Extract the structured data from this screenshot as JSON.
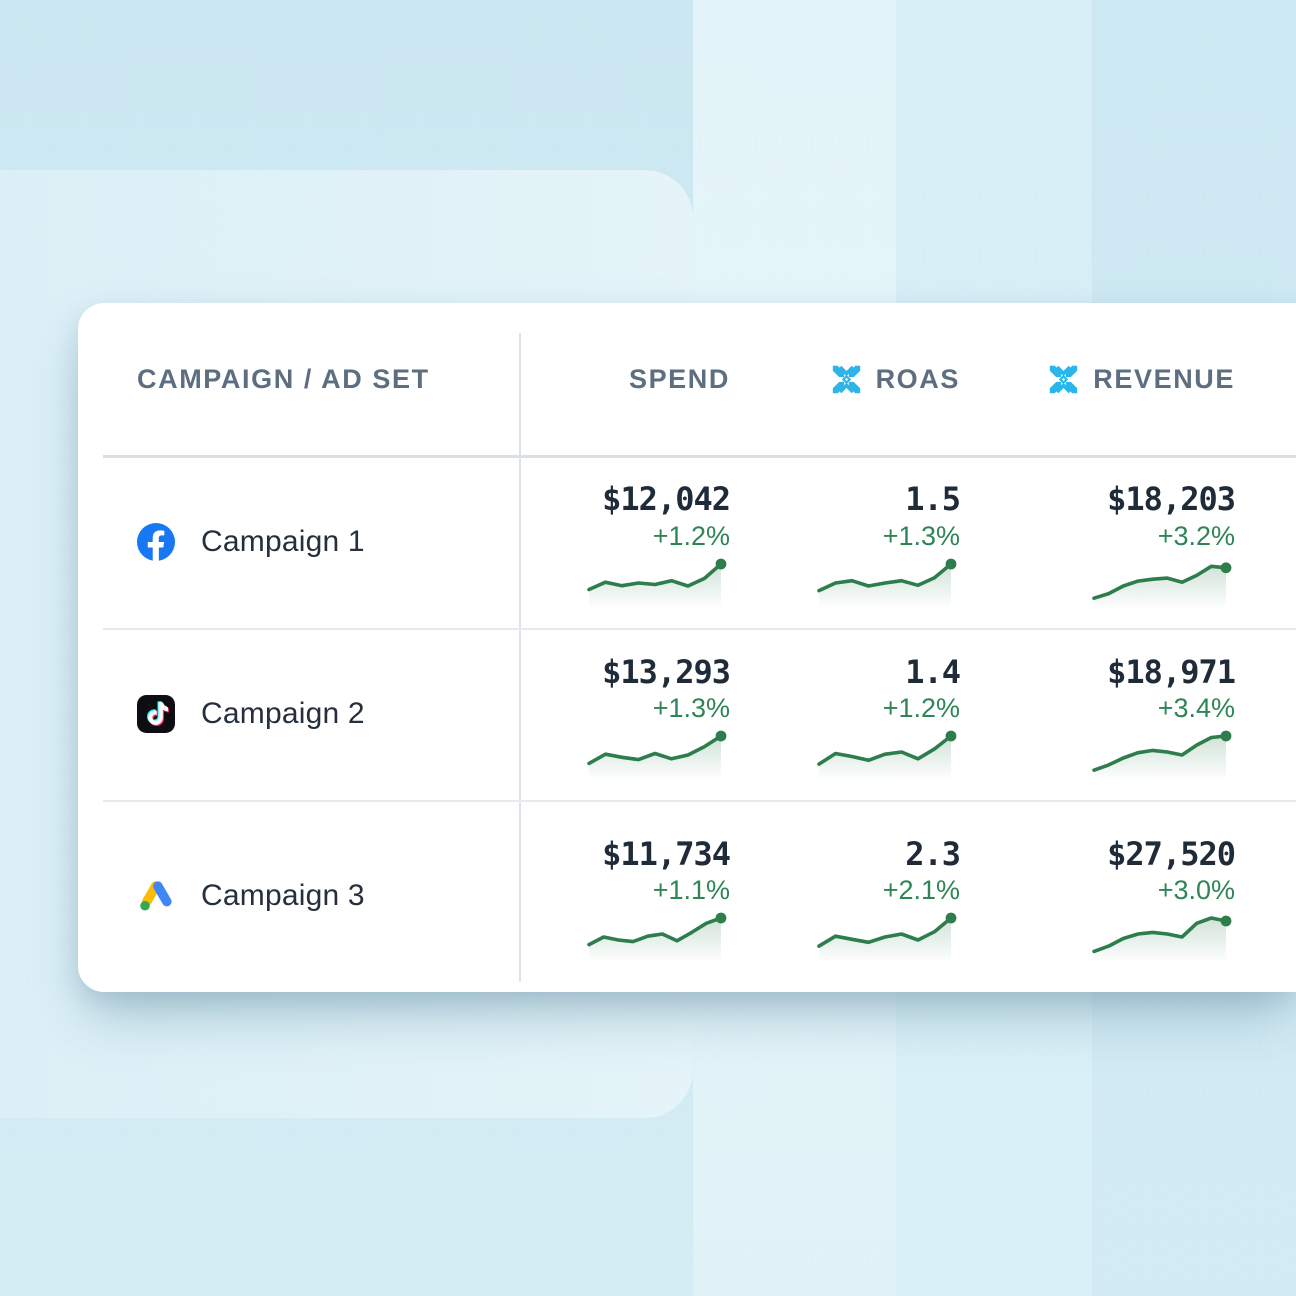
{
  "colors": {
    "accent_green": "#2f8556",
    "spark_green": "#2e7d4c",
    "snowflake_blue": "#2bb5e8",
    "facebook_blue": "#1877F2",
    "tiktok_black": "#0d0d12",
    "tiktok_cyan": "#25F4EE",
    "tiktok_red": "#FE2C55",
    "gads_yellow": "#FBBC04",
    "gads_blue": "#4285F4",
    "gads_green": "#34A853",
    "value_text": "#1f2b38",
    "header_text": "#5d6e80",
    "bg_cyan": "#d0eaf3"
  },
  "table": {
    "columns": [
      {
        "id": "campaign",
        "label": "CAMPAIGN / AD SET",
        "icon": null
      },
      {
        "id": "spend",
        "label": "SPEND",
        "icon": null
      },
      {
        "id": "roas",
        "label": "ROAS",
        "icon": "snowflake"
      },
      {
        "id": "revenue",
        "label": "REVENUE",
        "icon": "snowflake"
      }
    ],
    "rows": [
      {
        "name": "Campaign 1",
        "platform": "facebook",
        "spend": {
          "value": "$12,042",
          "delta": "+1.2%",
          "spark": [
            0.33,
            0.52,
            0.43,
            0.5,
            0.46,
            0.56,
            0.42,
            0.62,
            1.0
          ]
        },
        "roas": {
          "value": "1.5",
          "delta": "+1.3%",
          "spark": [
            0.3,
            0.5,
            0.56,
            0.42,
            0.5,
            0.56,
            0.44,
            0.64,
            1.0
          ]
        },
        "revenue": {
          "value": "$18,203",
          "delta": "+3.2%",
          "spark": [
            0.1,
            0.22,
            0.42,
            0.55,
            0.6,
            0.63,
            0.52,
            0.7,
            0.94,
            0.9
          ]
        }
      },
      {
        "name": "Campaign 2",
        "platform": "tiktok",
        "spend": {
          "value": "$13,293",
          "delta": "+1.3%",
          "spark": [
            0.28,
            0.52,
            0.44,
            0.38,
            0.54,
            0.4,
            0.5,
            0.72,
            1.0
          ]
        },
        "roas": {
          "value": "1.4",
          "delta": "+1.2%",
          "spark": [
            0.26,
            0.54,
            0.46,
            0.36,
            0.52,
            0.58,
            0.4,
            0.66,
            1.0
          ]
        },
        "revenue": {
          "value": "$18,971",
          "delta": "+3.4%",
          "spark": [
            0.1,
            0.24,
            0.42,
            0.56,
            0.62,
            0.58,
            0.5,
            0.76,
            0.96,
            1.0
          ]
        }
      },
      {
        "name": "Campaign 3",
        "platform": "google-ads",
        "spend": {
          "value": "$11,734",
          "delta": "+1.1%",
          "spark": [
            0.3,
            0.5,
            0.42,
            0.38,
            0.52,
            0.58,
            0.4,
            0.62,
            0.86,
            1.0
          ]
        },
        "roas": {
          "value": "2.3",
          "delta": "+2.1%",
          "spark": [
            0.26,
            0.52,
            0.44,
            0.36,
            0.5,
            0.58,
            0.42,
            0.64,
            1.0
          ]
        },
        "revenue": {
          "value": "$27,520",
          "delta": "+3.0%",
          "spark": [
            0.12,
            0.26,
            0.46,
            0.58,
            0.62,
            0.58,
            0.5,
            0.86,
            1.0,
            0.92
          ]
        }
      }
    ]
  }
}
